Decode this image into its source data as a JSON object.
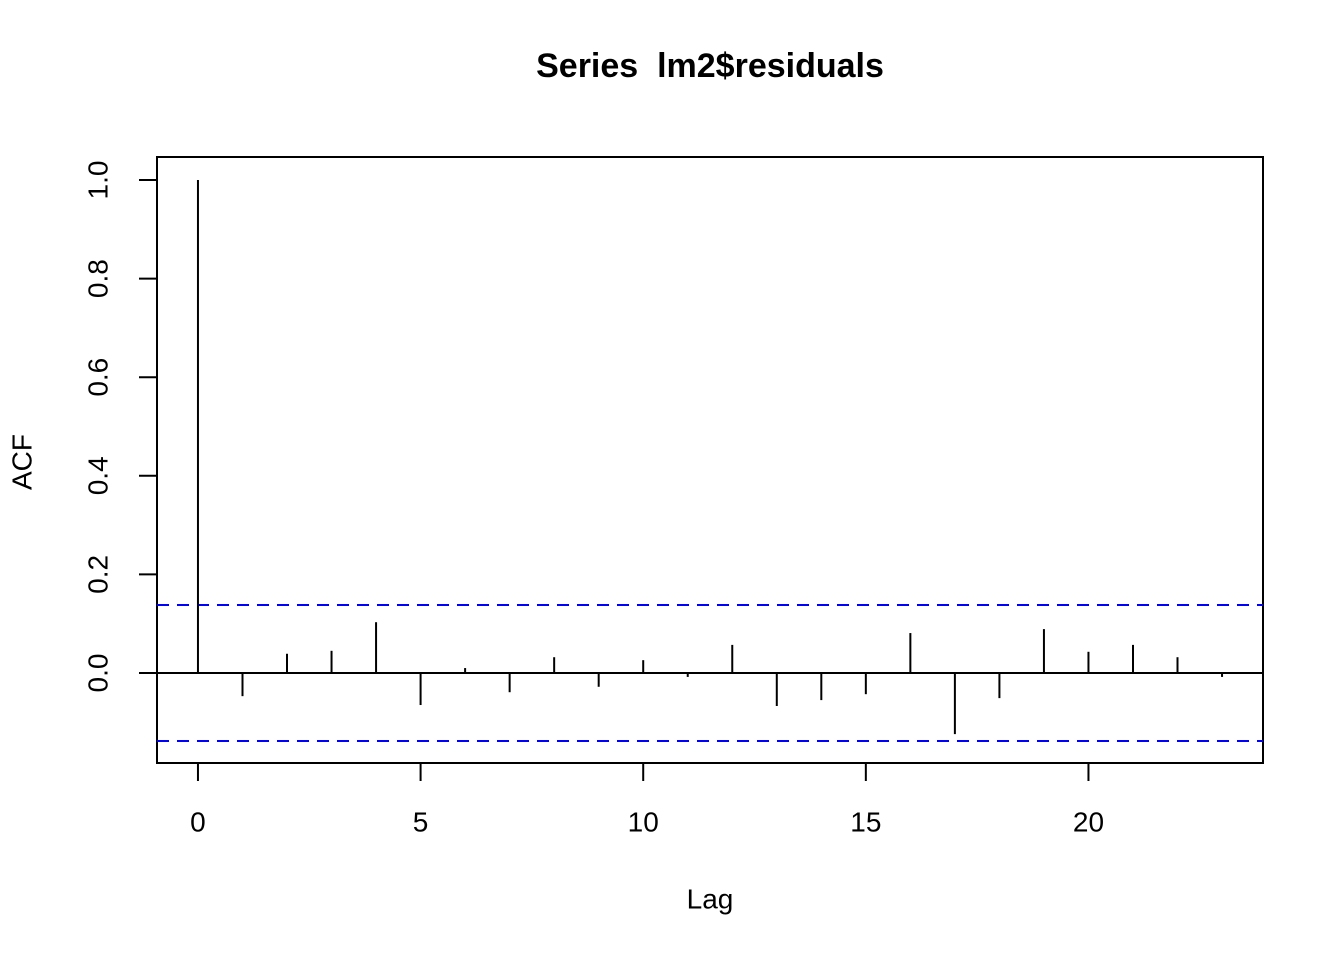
{
  "chart_data": {
    "type": "acf",
    "title": "Series  lm2$residuals",
    "x_label": "Lag",
    "y_label": "ACF",
    "x": [
      0,
      1,
      2,
      3,
      4,
      5,
      6,
      7,
      8,
      9,
      10,
      11,
      12,
      13,
      14,
      15,
      16,
      17,
      18,
      19,
      20,
      21,
      22,
      23
    ],
    "values": [
      1.0,
      -0.047,
      0.039,
      0.045,
      0.103,
      -0.065,
      0.01,
      -0.039,
      0.032,
      -0.028,
      0.026,
      -0.008,
      0.057,
      -0.067,
      -0.055,
      -0.043,
      0.081,
      -0.124,
      -0.051,
      0.089,
      0.043,
      0.057,
      0.032,
      -0.008
    ],
    "color": "#000000",
    "conf_limits": [
      0.138,
      -0.138
    ],
    "conf_color": "#0000ff",
    "xlim": [
      -0.92,
      23.92
    ],
    "ylim": [
      -0.1826,
      1.0467
    ],
    "xticks": [
      0,
      5,
      10,
      15,
      20
    ],
    "yticks": [
      {
        "value": 0,
        "label": "0.0"
      },
      0.2,
      0.4,
      0.6,
      0.8,
      {
        "value": 1,
        "label": "1.0"
      }
    ]
  }
}
